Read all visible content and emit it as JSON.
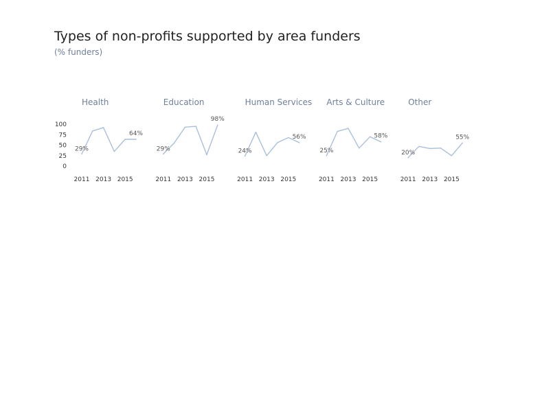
{
  "header": {
    "title": "Types of non-profits supported by area funders",
    "subtitle": "(% funders)"
  },
  "colors": {
    "line": "#a9bfdc",
    "title": "#6e7f9a"
  },
  "chart_data": {
    "type": "line",
    "title": "Types of non-profits supported by area funders",
    "subtitle": "(% funders)",
    "ylim": [
      0,
      100
    ],
    "yticks": [
      0,
      25,
      50,
      75,
      100
    ],
    "xticks": [
      "2011",
      "2013",
      "2015"
    ],
    "grid": false,
    "panels": [
      {
        "name": "Health",
        "x": [
          2011,
          2012,
          2013,
          2014,
          2015,
          2016
        ],
        "values": [
          29,
          84,
          92,
          35,
          64,
          64
        ],
        "first_label": "29%",
        "last_label": "64%"
      },
      {
        "name": "Education",
        "x": [
          2011,
          2012,
          2013,
          2014,
          2015,
          2016
        ],
        "values": [
          29,
          55,
          93,
          95,
          27,
          98
        ],
        "first_label": "29%",
        "last_label": "98%"
      },
      {
        "name": "Human Services",
        "x": [
          2011,
          2012,
          2013,
          2014,
          2015,
          2016
        ],
        "values": [
          24,
          81,
          25,
          56,
          68,
          56
        ],
        "first_label": "24%",
        "last_label": "56%"
      },
      {
        "name": "Arts & Culture",
        "x": [
          2011,
          2012,
          2013,
          2014,
          2015,
          2016
        ],
        "values": [
          25,
          83,
          90,
          43,
          70,
          58
        ],
        "first_label": "25%",
        "last_label": "58%"
      },
      {
        "name": "Other",
        "x": [
          2011,
          2012,
          2013,
          2014,
          2015,
          2016
        ],
        "values": [
          20,
          47,
          42,
          43,
          25,
          55
        ],
        "first_label": "20%",
        "last_label": "55%"
      }
    ]
  }
}
